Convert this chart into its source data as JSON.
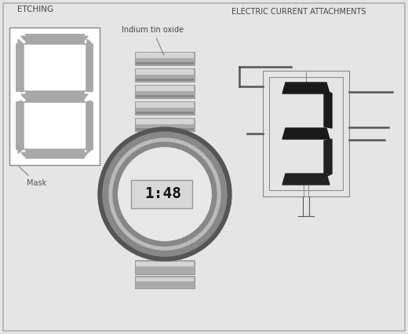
{
  "bg_color": "#e5e5e5",
  "border_color": "#b0b0b0",
  "title_etching": "ETCHING",
  "title_electric": "ELECTRIC CURRENT ATTACHMENTS",
  "label_indium": "Indium tin oxide",
  "label_mask": "Mask",
  "seg_gray": "#a8a8a8",
  "seg_gray_dark": "#888888",
  "dark_gray": "#555555",
  "black": "#1a1a1a",
  "white": "#ffffff",
  "band_gray": "#a0a0a0",
  "band_light": "#d0d0d0",
  "ring_dark": "#666666",
  "ring_mid": "#999999",
  "ring_light": "#cccccc",
  "face_color": "#e8e8e8",
  "lcd_bg": "#e0e0e0"
}
